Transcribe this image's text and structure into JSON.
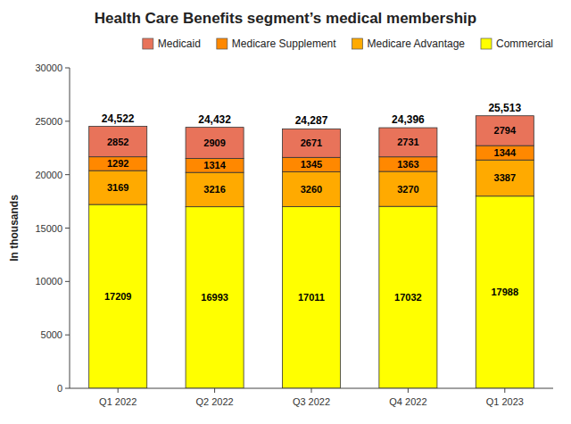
{
  "chart_data": {
    "type": "bar",
    "stacked": true,
    "title": "Health Care Benefits segment’s medical membership",
    "ylabel": "In thousands",
    "categories": [
      "Q1 2022",
      "Q2 2022",
      "Q3 2022",
      "Q4 2022",
      "Q1 2023"
    ],
    "series": [
      {
        "name": "Commercial",
        "color": "#ffff00",
        "values": [
          17209,
          16993,
          17011,
          17032,
          17988
        ]
      },
      {
        "name": "Medicare Advantage",
        "color": "#ffaa00",
        "values": [
          3169,
          3216,
          3260,
          3270,
          3387
        ]
      },
      {
        "name": "Medicare Supplement",
        "color": "#ff8800",
        "values": [
          1292,
          1314,
          1345,
          1363,
          1344
        ]
      },
      {
        "name": "Medicaid",
        "color": "#e8735a",
        "values": [
          2852,
          2909,
          2671,
          2731,
          2794
        ]
      }
    ],
    "totals": {
      "values": [
        24522,
        24432,
        24287,
        24396,
        25513
      ],
      "value_labels": [
        "24,522",
        "24,432",
        "24,287",
        "24,396",
        "25,513"
      ]
    },
    "ylim": [
      0,
      30000
    ],
    "yticks": [
      0,
      5000,
      10000,
      15000,
      20000,
      25000,
      30000
    ],
    "data_labels": true,
    "legend": "upper right",
    "grid": false
  }
}
